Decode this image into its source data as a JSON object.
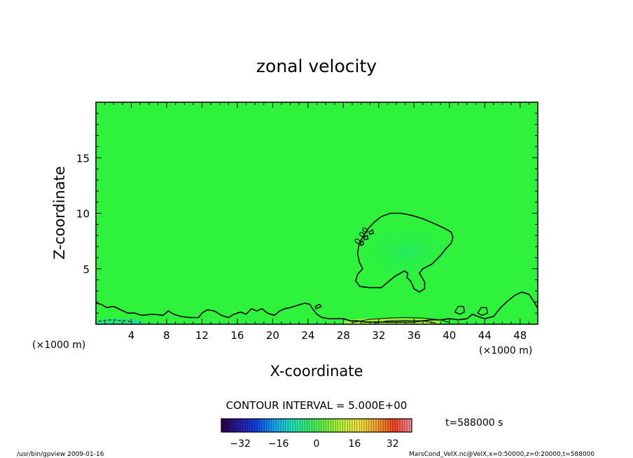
{
  "chart_data": {
    "type": "heatmap",
    "title": "zonal velocity",
    "xlabel": "X-coordinate",
    "ylabel": "Z-coordinate",
    "x_unit_left": "(×1000 m)",
    "x_unit_right": "(×1000 m)",
    "y_unit": "(×1000 m)",
    "xlim": [
      0,
      50
    ],
    "ylim": [
      0,
      20
    ],
    "x_ticks": [
      4,
      8,
      12,
      16,
      20,
      24,
      28,
      32,
      36,
      40,
      44,
      48
    ],
    "y_ticks": [
      5,
      10,
      15
    ],
    "contour_interval_label": "CONTOUR INTERVAL = 5.000E+00",
    "time_label": "t=588000 s",
    "contour_label": "0.00",
    "colorbar": {
      "range": [
        -40,
        40
      ],
      "ticks": [
        -32,
        -16,
        0,
        16,
        32
      ],
      "colors": [
        "#2a0040",
        "#2a1aa0",
        "#1040e0",
        "#10a0f0",
        "#20e0c0",
        "#30f070",
        "#70f040",
        "#c0f040",
        "#f0e040",
        "#f0a030",
        "#f04020",
        "#f090a0"
      ]
    },
    "background_color": "#2ef23c",
    "zero_contour_main": [
      [
        30.2,
        5.0
      ],
      [
        29.8,
        5.6
      ],
      [
        29.6,
        6.4
      ],
      [
        29.8,
        7.3
      ],
      [
        30.3,
        8.0
      ],
      [
        30.8,
        8.6
      ],
      [
        31.5,
        9.2
      ],
      [
        32.3,
        9.7
      ],
      [
        33.3,
        10.0
      ],
      [
        34.5,
        10.0
      ],
      [
        35.8,
        9.8
      ],
      [
        37.0,
        9.5
      ],
      [
        38.2,
        9.1
      ],
      [
        39.3,
        8.7
      ],
      [
        40.2,
        8.3
      ],
      [
        40.4,
        7.8
      ],
      [
        40.2,
        7.3
      ],
      [
        39.6,
        6.8
      ],
      [
        39.0,
        6.2
      ],
      [
        38.0,
        5.4
      ],
      [
        37.0,
        5.0
      ],
      [
        36.6,
        4.6
      ],
      [
        37.2,
        3.8
      ],
      [
        37.2,
        3.2
      ],
      [
        36.6,
        2.9
      ],
      [
        36.0,
        3.2
      ],
      [
        35.6,
        3.9
      ],
      [
        35.2,
        4.2
      ],
      [
        35.3,
        4.6
      ],
      [
        34.9,
        4.8
      ],
      [
        33.8,
        4.3
      ],
      [
        32.3,
        3.3
      ],
      [
        31.0,
        3.3
      ],
      [
        29.9,
        3.4
      ],
      [
        29.4,
        3.9
      ],
      [
        29.6,
        4.5
      ],
      [
        30.2,
        5.0
      ]
    ],
    "zero_contour_islands": [
      [
        [
          29.9,
          7.3
        ],
        [
          30.2,
          7.5
        ],
        [
          30.3,
          7.2
        ],
        [
          30.0,
          7.1
        ],
        [
          29.9,
          7.3
        ]
      ],
      [
        [
          30.3,
          7.8
        ],
        [
          30.7,
          8.0
        ],
        [
          30.8,
          7.7
        ],
        [
          30.4,
          7.6
        ],
        [
          30.3,
          7.8
        ]
      ],
      [
        [
          30.9,
          8.3
        ],
        [
          31.3,
          8.5
        ],
        [
          31.4,
          8.2
        ],
        [
          31.0,
          8.1
        ],
        [
          30.9,
          8.3
        ]
      ],
      [
        [
          40.6,
          1.1
        ],
        [
          41.0,
          1.6
        ],
        [
          41.6,
          1.6
        ],
        [
          41.7,
          1.1
        ],
        [
          41.2,
          0.9
        ],
        [
          40.6,
          1.1
        ]
      ],
      [
        [
          43.2,
          1.0
        ],
        [
          43.6,
          1.5
        ],
        [
          44.2,
          1.5
        ],
        [
          44.3,
          1.0
        ],
        [
          43.7,
          0.8
        ],
        [
          43.2,
          1.0
        ]
      ],
      [
        [
          24.8,
          1.6
        ],
        [
          25.3,
          1.8
        ],
        [
          25.5,
          1.6
        ],
        [
          24.9,
          1.4
        ],
        [
          24.8,
          1.6
        ]
      ]
    ],
    "zero_contour_bottom": [
      [
        0.0,
        1.9
      ],
      [
        0.6,
        1.8
      ],
      [
        1.2,
        1.5
      ],
      [
        2.0,
        1.6
      ],
      [
        2.8,
        1.3
      ],
      [
        3.6,
        1.0
      ],
      [
        4.4,
        1.0
      ],
      [
        5.2,
        0.8
      ],
      [
        6.4,
        0.9
      ],
      [
        7.6,
        0.8
      ],
      [
        8.2,
        1.2
      ],
      [
        8.8,
        0.9
      ],
      [
        9.6,
        0.7
      ],
      [
        10.6,
        0.6
      ],
      [
        11.6,
        0.6
      ],
      [
        12.0,
        1.0
      ],
      [
        12.6,
        1.3
      ],
      [
        13.4,
        1.2
      ],
      [
        14.2,
        0.8
      ],
      [
        15.0,
        0.6
      ],
      [
        15.6,
        0.9
      ],
      [
        16.4,
        1.1
      ],
      [
        17.0,
        0.9
      ],
      [
        17.6,
        1.4
      ],
      [
        18.2,
        1.2
      ],
      [
        18.8,
        1.4
      ],
      [
        19.4,
        1.0
      ],
      [
        20.2,
        0.8
      ],
      [
        20.8,
        1.2
      ],
      [
        21.4,
        1.4
      ],
      [
        22.0,
        1.5
      ],
      [
        22.8,
        1.7
      ],
      [
        23.6,
        1.9
      ],
      [
        24.2,
        1.8
      ],
      [
        24.6,
        1.3
      ],
      [
        25.0,
        0.9
      ],
      [
        25.6,
        0.6
      ],
      [
        26.4,
        0.5
      ],
      [
        27.2,
        0.5
      ],
      [
        28.0,
        0.5
      ],
      [
        28.8,
        0.3
      ],
      [
        29.6,
        0.3
      ],
      [
        30.4,
        0.2
      ],
      [
        31.2,
        0.2
      ],
      [
        32.0,
        0.2
      ],
      [
        33.0,
        0.2
      ],
      [
        34.0,
        0.2
      ],
      [
        35.0,
        0.2
      ],
      [
        36.0,
        0.2
      ],
      [
        37.0,
        0.3
      ],
      [
        38.0,
        0.4
      ],
      [
        39.0,
        0.4
      ],
      [
        40.0,
        0.5
      ],
      [
        41.0,
        0.4
      ],
      [
        42.0,
        0.5
      ],
      [
        42.6,
        0.9
      ],
      [
        43.2,
        0.7
      ],
      [
        44.0,
        0.5
      ],
      [
        45.0,
        0.7
      ],
      [
        45.8,
        1.5
      ],
      [
        46.6,
        2.1
      ],
      [
        47.4,
        2.6
      ],
      [
        48.2,
        2.9
      ],
      [
        49.0,
        2.7
      ],
      [
        49.6,
        2.0
      ],
      [
        50.0,
        1.4
      ]
    ],
    "positive_contours": [
      [
        [
          29.0,
          0.15
        ],
        [
          31.0,
          0.45
        ],
        [
          33.0,
          0.55
        ],
        [
          35.0,
          0.6
        ],
        [
          37.0,
          0.55
        ],
        [
          39.0,
          0.4
        ],
        [
          40.0,
          0.15
        ]
      ],
      [
        [
          31.5,
          0.1
        ],
        [
          33.0,
          0.3
        ],
        [
          35.0,
          0.35
        ],
        [
          37.0,
          0.3
        ],
        [
          38.5,
          0.1
        ]
      ]
    ],
    "negative_contour_dashed": [
      [
        0.3,
        0.25
      ],
      [
        1.0,
        0.35
      ],
      [
        1.8,
        0.4
      ],
      [
        2.6,
        0.35
      ],
      [
        3.4,
        0.3
      ],
      [
        4.2,
        0.2
      ]
    ],
    "left_footer": "/usr/bin/gpview   2009-01-16",
    "right_footer": "MarsCond_VelX.nc@VelX,x=0:50000,z=0:20000,t=588000"
  }
}
